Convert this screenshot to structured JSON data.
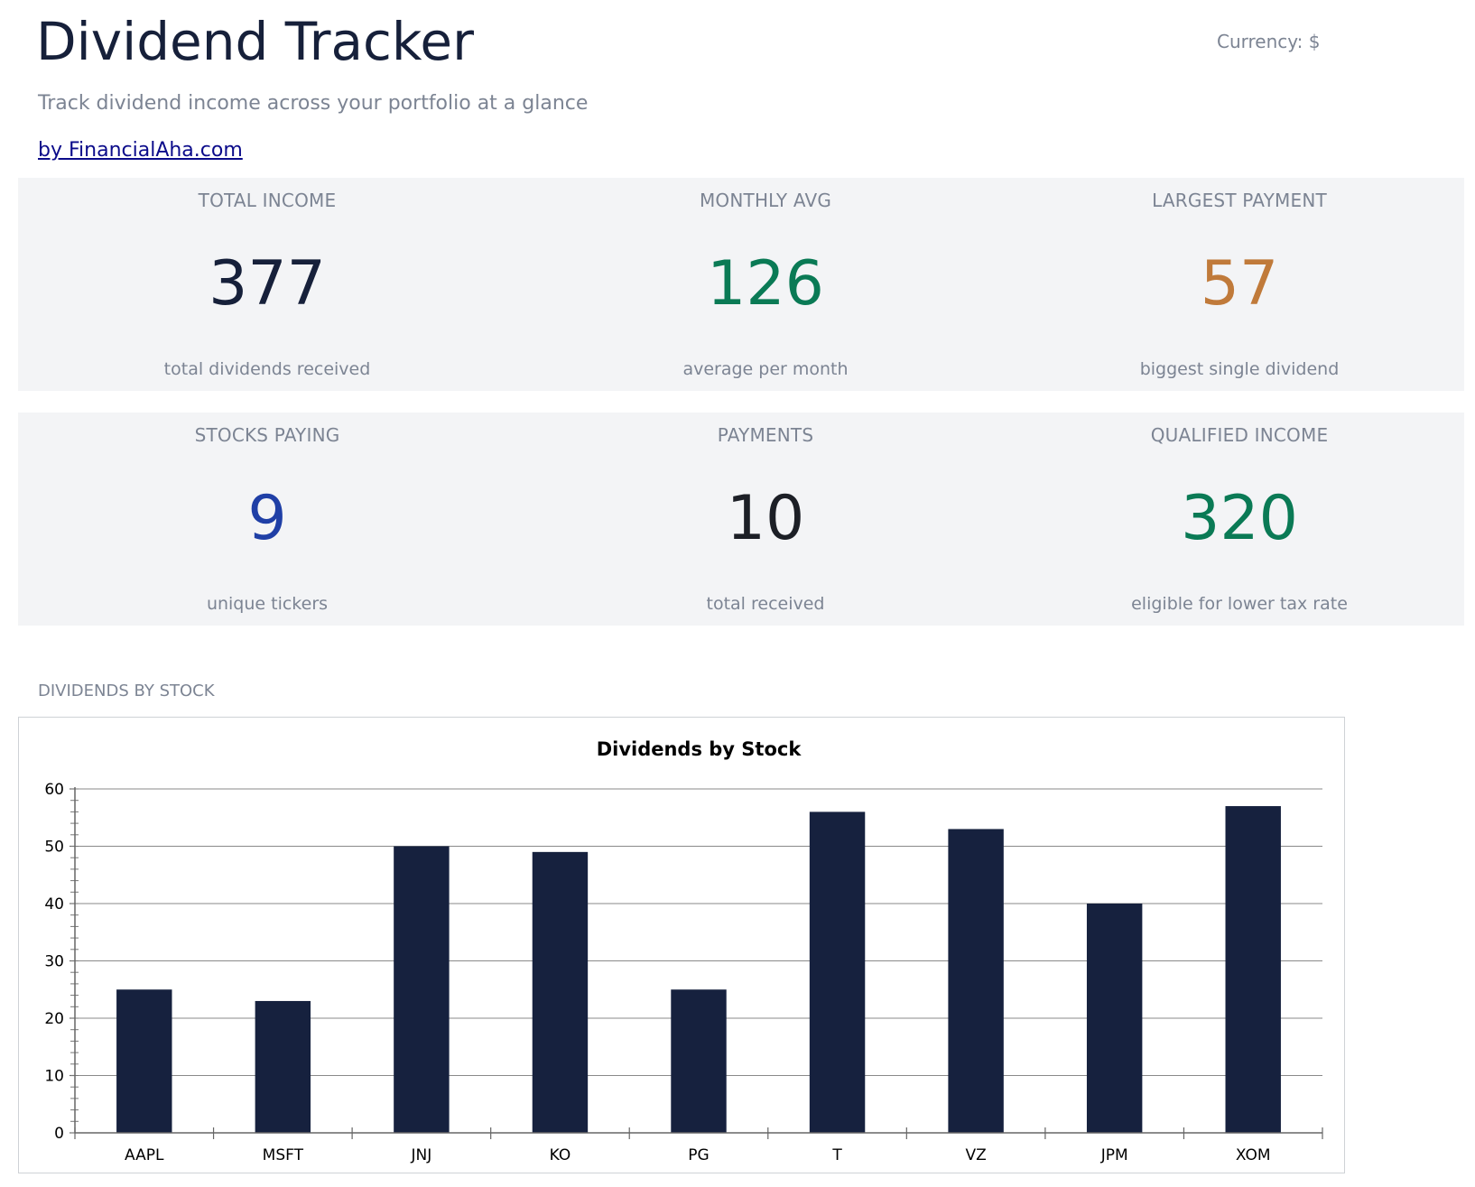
{
  "header": {
    "title": "Dividend Tracker",
    "currency": "Currency: $",
    "subtitle": "Track dividend income across your portfolio at a glance",
    "link_text": "by FinancialAha.com"
  },
  "colors": {
    "navy": "#16203a",
    "green": "#0a7a55",
    "orange": "#c07a3a",
    "blue": "#1f3fa6",
    "dark": "#1c1f26",
    "muted": "#7c8493",
    "panel": "#f3f4f6",
    "bar": "#16213e"
  },
  "stats": {
    "total_income": {
      "label": "TOTAL INCOME",
      "value": "377",
      "sub": "total dividends received"
    },
    "monthly_avg": {
      "label": "MONTHLY AVG",
      "value": "126",
      "sub": "average per month"
    },
    "largest_payment": {
      "label": "LARGEST PAYMENT",
      "value": "57",
      "sub": "biggest single dividend"
    },
    "stocks_paying": {
      "label": "STOCKS PAYING",
      "value": "9",
      "sub": "unique tickers"
    },
    "payments": {
      "label": "PAYMENTS",
      "value": "10",
      "sub": "total received"
    },
    "qualified_income": {
      "label": "QUALIFIED INCOME",
      "value": "320",
      "sub": "eligible for lower tax rate"
    }
  },
  "section": {
    "label": "DIVIDENDS BY STOCK"
  },
  "chart_data": {
    "type": "bar",
    "title": "Dividends by Stock",
    "xlabel": "",
    "ylabel": "",
    "categories": [
      "AAPL",
      "MSFT",
      "JNJ",
      "KO",
      "PG",
      "T",
      "VZ",
      "JPM",
      "XOM"
    ],
    "values": [
      25,
      23,
      50,
      49,
      25,
      56,
      53,
      40,
      57
    ],
    "ylim": [
      0,
      60
    ],
    "yticks": [
      0,
      10,
      20,
      30,
      40,
      50,
      60
    ],
    "grid": true,
    "legend": "none"
  }
}
